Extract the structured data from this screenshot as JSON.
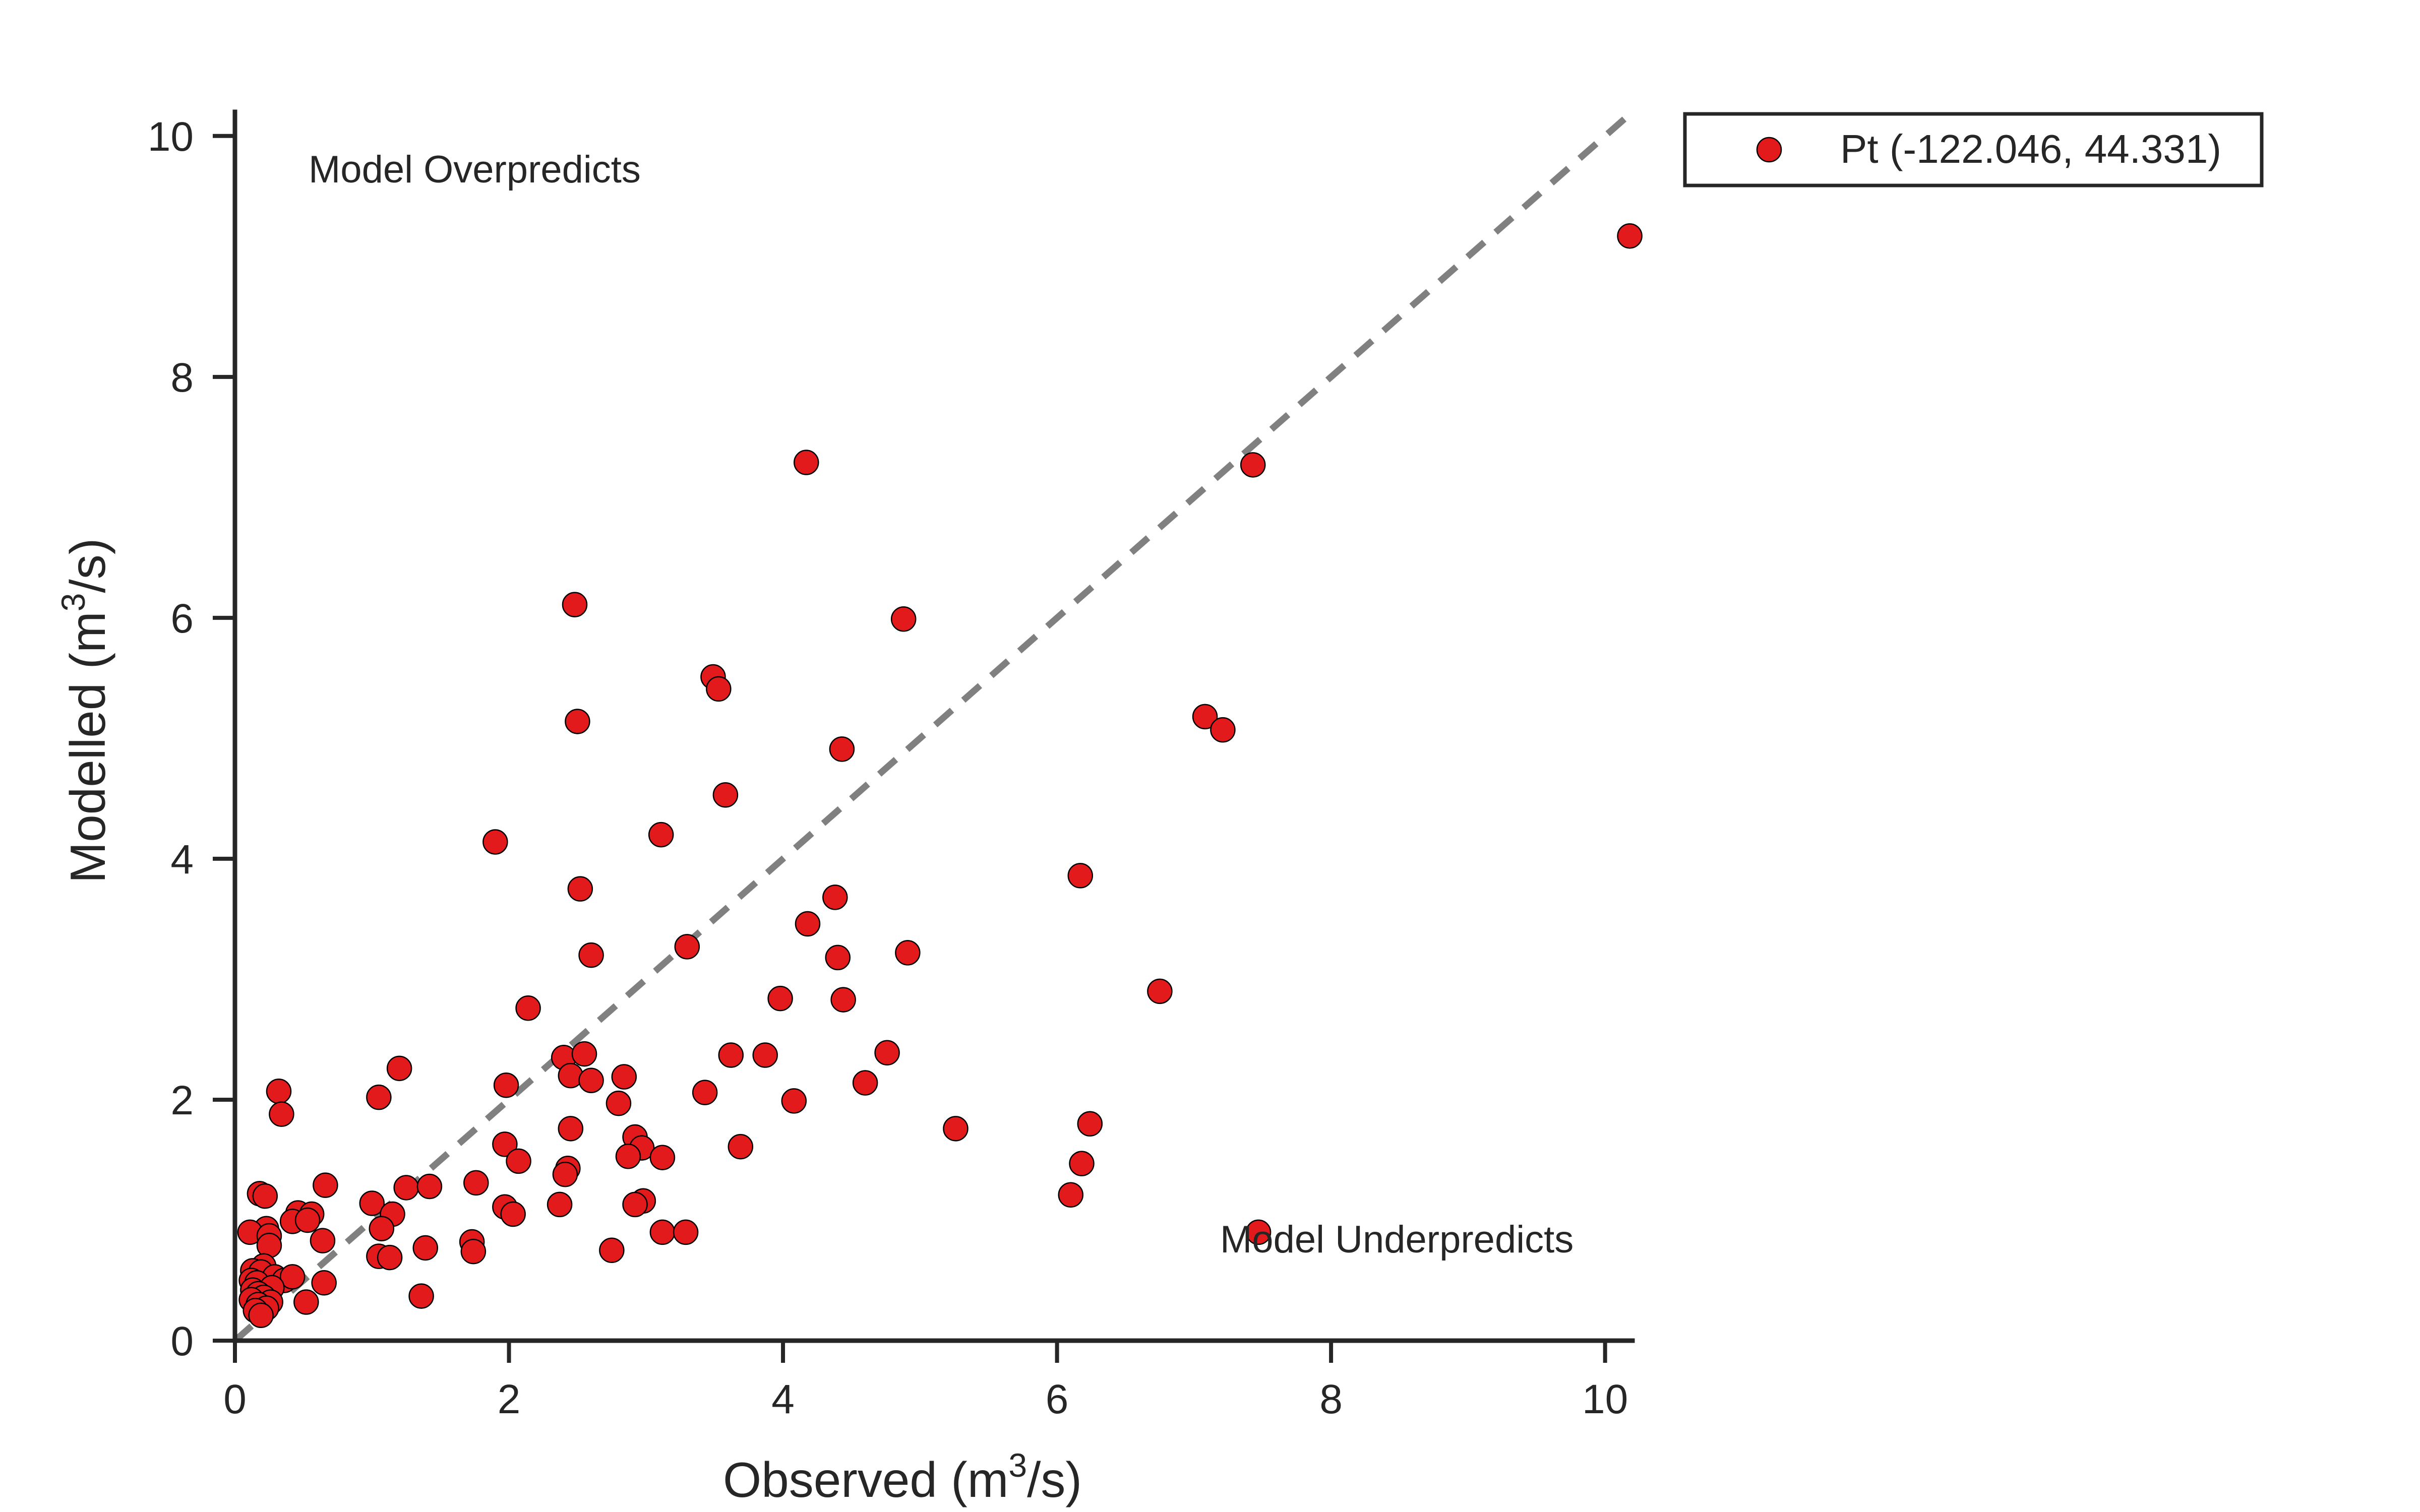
{
  "chart_data": {
    "type": "scatter",
    "xlabel": "Observed (m³/s)",
    "ylabel": "Modelled (m³/s)",
    "xlim": [
      0,
      10.2
    ],
    "ylim": [
      0,
      10.2
    ],
    "xticks": [
      0,
      2,
      4,
      6,
      8,
      10
    ],
    "yticks": [
      0,
      2,
      4,
      6,
      8,
      10
    ],
    "grid": false,
    "legend_position": "upper right, outside plot",
    "annotations": {
      "top_left": "Model Overpredicts",
      "bottom_right": "Model Underpredicts"
    },
    "reference_line": {
      "type": "1:1",
      "style": "dashed",
      "color": "#808080"
    },
    "series": [
      {
        "name": "Pt (-122.046, 44.331)",
        "color": "#e31a1c",
        "edge_color": "#000000",
        "points": [
          [
            10.18,
            9.17
          ],
          [
            7.43,
            7.27
          ],
          [
            4.17,
            7.29
          ],
          [
            2.48,
            6.11
          ],
          [
            4.88,
            5.99
          ],
          [
            3.49,
            5.51
          ],
          [
            3.53,
            5.41
          ],
          [
            2.5,
            5.14
          ],
          [
            7.08,
            5.18
          ],
          [
            7.21,
            5.07
          ],
          [
            4.43,
            4.91
          ],
          [
            3.58,
            4.53
          ],
          [
            3.11,
            4.2
          ],
          [
            1.9,
            4.14
          ],
          [
            6.17,
            3.86
          ],
          [
            2.52,
            3.75
          ],
          [
            4.38,
            3.68
          ],
          [
            4.18,
            3.46
          ],
          [
            3.3,
            3.27
          ],
          [
            2.6,
            3.2
          ],
          [
            4.4,
            3.18
          ],
          [
            4.91,
            3.22
          ],
          [
            6.75,
            2.9
          ],
          [
            3.98,
            2.84
          ],
          [
            4.44,
            2.83
          ],
          [
            2.14,
            2.76
          ],
          [
            2.4,
            2.35
          ],
          [
            2.55,
            2.38
          ],
          [
            3.62,
            2.37
          ],
          [
            3.87,
            2.37
          ],
          [
            4.76,
            2.39
          ],
          [
            0.32,
            2.07
          ],
          [
            1.2,
            2.26
          ],
          [
            2.45,
            2.2
          ],
          [
            2.6,
            2.16
          ],
          [
            2.84,
            2.19
          ],
          [
            1.98,
            2.12
          ],
          [
            4.6,
            2.14
          ],
          [
            0.34,
            1.88
          ],
          [
            1.05,
            2.02
          ],
          [
            3.43,
            2.06
          ],
          [
            2.8,
            1.97
          ],
          [
            4.08,
            1.99
          ],
          [
            5.26,
            1.76
          ],
          [
            6.24,
            1.8
          ],
          [
            2.45,
            1.76
          ],
          [
            2.92,
            1.69
          ],
          [
            1.97,
            1.63
          ],
          [
            2.97,
            1.6
          ],
          [
            3.69,
            1.61
          ],
          [
            2.07,
            1.49
          ],
          [
            2.87,
            1.53
          ],
          [
            3.12,
            1.52
          ],
          [
            2.43,
            1.43
          ],
          [
            2.41,
            1.38
          ],
          [
            6.18,
            1.47
          ],
          [
            0.66,
            1.29
          ],
          [
            1.25,
            1.27
          ],
          [
            1.42,
            1.28
          ],
          [
            1.76,
            1.31
          ],
          [
            0.18,
            1.22
          ],
          [
            0.22,
            1.2
          ],
          [
            1.0,
            1.14
          ],
          [
            6.1,
            1.21
          ],
          [
            2.98,
            1.16
          ],
          [
            2.92,
            1.13
          ],
          [
            1.97,
            1.11
          ],
          [
            2.37,
            1.13
          ],
          [
            0.46,
            1.06
          ],
          [
            0.56,
            1.05
          ],
          [
            1.15,
            1.05
          ],
          [
            2.03,
            1.05
          ],
          [
            0.42,
            0.99
          ],
          [
            0.53,
            1.0
          ],
          [
            0.23,
            0.93
          ],
          [
            1.07,
            0.93
          ],
          [
            0.11,
            0.9
          ],
          [
            0.25,
            0.87
          ],
          [
            3.12,
            0.9
          ],
          [
            3.29,
            0.9
          ],
          [
            7.47,
            0.9
          ],
          [
            0.64,
            0.83
          ],
          [
            1.73,
            0.82
          ],
          [
            0.25,
            0.79
          ],
          [
            1.39,
            0.77
          ],
          [
            1.74,
            0.74
          ],
          [
            2.75,
            0.75
          ],
          [
            1.05,
            0.7
          ],
          [
            1.13,
            0.69
          ],
          [
            0.21,
            0.62
          ],
          [
            0.13,
            0.58
          ],
          [
            0.19,
            0.57
          ],
          [
            0.29,
            0.53
          ],
          [
            0.12,
            0.5
          ],
          [
            0.16,
            0.48
          ],
          [
            0.36,
            0.5
          ],
          [
            0.42,
            0.53
          ],
          [
            0.65,
            0.48
          ],
          [
            0.27,
            0.44
          ],
          [
            0.13,
            0.42
          ],
          [
            0.17,
            0.39
          ],
          [
            0.21,
            0.36
          ],
          [
            0.12,
            0.34
          ],
          [
            0.26,
            0.32
          ],
          [
            0.17,
            0.3
          ],
          [
            0.52,
            0.32
          ],
          [
            1.36,
            0.37
          ],
          [
            0.23,
            0.27
          ],
          [
            0.15,
            0.25
          ],
          [
            0.19,
            0.21
          ]
        ]
      }
    ]
  }
}
